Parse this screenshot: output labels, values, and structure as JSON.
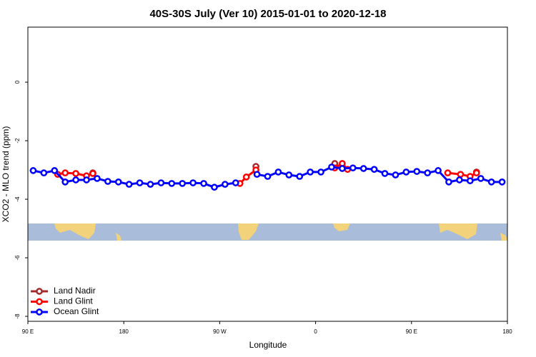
{
  "chart_data": {
    "type": "line",
    "title": "40S-30S July (Ver 10)   2015-01-01 to 2020-12-18",
    "xlabel": "Longitude",
    "ylabel": "XCO2 - MLO trend (ppm)",
    "xlim": [
      90,
      540
    ],
    "ylim": [
      -8.17,
      1.88
    ],
    "xticks": [
      {
        "value": 90,
        "label": "90 E"
      },
      {
        "value": 180,
        "label": "180"
      },
      {
        "value": 270,
        "label": "90 W"
      },
      {
        "value": 360,
        "label": "0"
      },
      {
        "value": 450,
        "label": "90 E"
      },
      {
        "value": 540,
        "label": "180"
      }
    ],
    "yticks": [
      -8,
      -6,
      -4,
      -2,
      0
    ],
    "legend": "bottom-left",
    "series": [
      {
        "name": "Land Nadir",
        "color": "#a52a2a",
        "x": [
          151,
          null,
          304,
          null,
          378,
          null,
          511
        ],
        "values": [
          -3.1,
          null,
          -2.88,
          null,
          -2.78,
          null,
          -3.07
        ]
      },
      {
        "name": "Land Glint",
        "color": "#ff0000",
        "x": [
          118,
          125,
          135,
          145,
          151,
          null,
          289,
          295,
          304,
          null,
          378,
          385,
          390,
          null,
          484,
          496,
          505,
          511
        ],
        "values": [
          -3.15,
          -3.1,
          -3.12,
          -3.2,
          -3.12,
          null,
          -3.46,
          -3.24,
          -3.0,
          null,
          -2.93,
          -2.78,
          -2.98,
          null,
          -3.1,
          -3.15,
          -3.22,
          -3.1
        ]
      },
      {
        "name": "Ocean Glint",
        "color": "#0000ff",
        "x": [
          95,
          105,
          115,
          125,
          135,
          145,
          155,
          165,
          175,
          185,
          195,
          205,
          215,
          225,
          235,
          245,
          255,
          265,
          275,
          285,
          null,
          305,
          315,
          325,
          335,
          345,
          355,
          365,
          375,
          385,
          395,
          405,
          415,
          425,
          435,
          445,
          455,
          465,
          475,
          485,
          495,
          505,
          515,
          525,
          535
        ],
        "values": [
          -3.02,
          -3.1,
          -3.02,
          -3.41,
          -3.34,
          -3.34,
          -3.29,
          -3.39,
          -3.41,
          -3.49,
          -3.44,
          -3.49,
          -3.44,
          -3.46,
          -3.46,
          -3.44,
          -3.46,
          -3.59,
          -3.49,
          -3.44,
          null,
          -3.15,
          -3.22,
          -3.07,
          -3.17,
          -3.22,
          -3.07,
          -3.07,
          -2.9,
          -2.95,
          -2.93,
          -2.95,
          -2.98,
          -3.12,
          -3.17,
          -3.07,
          -3.05,
          -3.1,
          -3.02,
          -3.41,
          -3.34,
          -3.37,
          -3.29,
          -3.41,
          -3.41
        ]
      }
    ]
  }
}
